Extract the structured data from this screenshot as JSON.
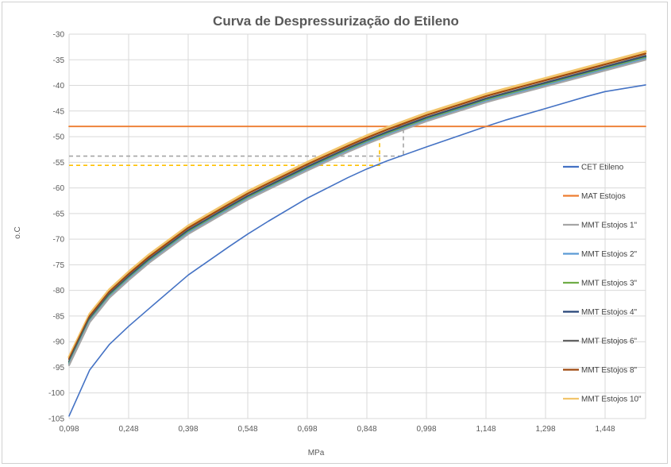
{
  "chart_data": {
    "type": "line",
    "title": "Curva de Despressurização do Etileno",
    "xlabel": "MPa",
    "ylabel": "o.C",
    "xlim": [
      0.098,
      1.55
    ],
    "ylim": [
      -105,
      -30
    ],
    "xticks": [
      0.098,
      0.248,
      0.398,
      0.548,
      0.698,
      0.848,
      0.998,
      1.148,
      1.298,
      1.448
    ],
    "xtick_labels": [
      "0,098",
      "0,248",
      "0,398",
      "0,548",
      "0,698",
      "0,848",
      "0,998",
      "1,148",
      "1,298",
      "1,448"
    ],
    "yticks": [
      -30,
      -35,
      -40,
      -45,
      -50,
      -55,
      -60,
      -65,
      -70,
      -75,
      -80,
      -85,
      -90,
      -95,
      -100,
      -105
    ],
    "grid": true,
    "legend_position": "right",
    "series": [
      {
        "name": "CET Etileno",
        "color": "#4472C4",
        "width": 1.6,
        "x": [
          0.098,
          0.15,
          0.2,
          0.248,
          0.3,
          0.398,
          0.5,
          0.548,
          0.6,
          0.698,
          0.8,
          0.848,
          0.9,
          0.998,
          1.1,
          1.148,
          1.2,
          1.298,
          1.4,
          1.448,
          1.55
        ],
        "y": [
          -104.5,
          -95.5,
          -90.5,
          -87,
          -83.5,
          -77,
          -71.5,
          -69,
          -66.5,
          -62,
          -58,
          -56.3,
          -54.7,
          -52,
          -49.3,
          -48,
          -46.7,
          -44.5,
          -42.2,
          -41.2,
          -39.9
        ]
      },
      {
        "name": "MAT Estojos",
        "color": "#ED7D31",
        "width": 1.8,
        "x": [
          0.098,
          1.55
        ],
        "y": [
          -48,
          -48
        ]
      },
      {
        "name": "MMT Estojos 1\"",
        "color": "#A5A5A5",
        "width": 2.2,
        "x": [
          0.098,
          0.15,
          0.2,
          0.248,
          0.3,
          0.398,
          0.5,
          0.548,
          0.6,
          0.698,
          0.8,
          0.848,
          0.9,
          0.998,
          1.1,
          1.148,
          1.2,
          1.298,
          1.4,
          1.448,
          1.55
        ],
        "y": [
          -94.6,
          -86.2,
          -81.4,
          -78,
          -74.6,
          -69,
          -64.4,
          -62.3,
          -60.3,
          -56.6,
          -53,
          -51.4,
          -49.8,
          -47,
          -44.5,
          -43.3,
          -42.2,
          -40.2,
          -38.1,
          -37.1,
          -35
        ]
      },
      {
        "name": "MMT Estojos 2\"",
        "color": "#5B9BD5",
        "width": 2.2,
        "x": [
          0.098,
          0.15,
          0.2,
          0.248,
          0.3,
          0.398,
          0.5,
          0.548,
          0.6,
          0.698,
          0.8,
          0.848,
          0.9,
          0.998,
          1.1,
          1.148,
          1.2,
          1.298,
          1.4,
          1.448,
          1.55
        ],
        "y": [
          -94.4,
          -86,
          -81.2,
          -77.8,
          -74.4,
          -68.8,
          -64.2,
          -62.1,
          -60.1,
          -56.4,
          -52.8,
          -51.2,
          -49.6,
          -46.8,
          -44.3,
          -43.1,
          -42,
          -40,
          -37.9,
          -36.9,
          -34.8
        ]
      },
      {
        "name": "MMT Estojos 3\"",
        "color": "#70AD47",
        "width": 2.2,
        "x": [
          0.098,
          0.15,
          0.2,
          0.248,
          0.3,
          0.398,
          0.5,
          0.548,
          0.6,
          0.698,
          0.8,
          0.848,
          0.9,
          0.998,
          1.1,
          1.148,
          1.2,
          1.298,
          1.4,
          1.448,
          1.55
        ],
        "y": [
          -94.2,
          -85.8,
          -81,
          -77.6,
          -74.2,
          -68.6,
          -64,
          -61.9,
          -59.9,
          -56.2,
          -52.6,
          -51,
          -49.4,
          -46.6,
          -44.1,
          -42.9,
          -41.8,
          -39.8,
          -37.7,
          -36.7,
          -34.6
        ]
      },
      {
        "name": "MMT Estojos 4\"",
        "color": "#264478",
        "width": 2.2,
        "x": [
          0.098,
          0.15,
          0.2,
          0.248,
          0.3,
          0.398,
          0.5,
          0.548,
          0.6,
          0.698,
          0.8,
          0.848,
          0.9,
          0.998,
          1.1,
          1.148,
          1.2,
          1.298,
          1.4,
          1.448,
          1.55
        ],
        "y": [
          -94,
          -85.6,
          -80.8,
          -77.4,
          -74,
          -68.4,
          -63.8,
          -61.7,
          -59.7,
          -56,
          -52.4,
          -50.8,
          -49.2,
          -46.4,
          -43.9,
          -42.7,
          -41.6,
          -39.6,
          -37.5,
          -36.5,
          -34.4
        ]
      },
      {
        "name": "MMT Estojos 6\"",
        "color": "#636363",
        "width": 2.2,
        "x": [
          0.098,
          0.15,
          0.2,
          0.248,
          0.3,
          0.398,
          0.5,
          0.548,
          0.6,
          0.698,
          0.8,
          0.848,
          0.9,
          0.998,
          1.1,
          1.148,
          1.2,
          1.298,
          1.4,
          1.448,
          1.55
        ],
        "y": [
          -93.8,
          -85.4,
          -80.6,
          -77.2,
          -73.8,
          -68.2,
          -63.6,
          -61.5,
          -59.5,
          -55.8,
          -52.2,
          -50.6,
          -49,
          -46.2,
          -43.7,
          -42.5,
          -41.4,
          -39.4,
          -37.3,
          -36.3,
          -34.2
        ]
      },
      {
        "name": "MMT Estojos 8\"",
        "color": "#9E480E",
        "width": 2.2,
        "x": [
          0.098,
          0.15,
          0.2,
          0.248,
          0.3,
          0.398,
          0.5,
          0.548,
          0.6,
          0.698,
          0.8,
          0.848,
          0.9,
          0.998,
          1.1,
          1.148,
          1.2,
          1.298,
          1.4,
          1.448,
          1.55
        ],
        "y": [
          -93.4,
          -85,
          -80.2,
          -76.8,
          -73.4,
          -67.8,
          -63.2,
          -61.1,
          -59.1,
          -55.4,
          -51.8,
          -50.2,
          -48.6,
          -45.8,
          -43.3,
          -42.1,
          -41,
          -39,
          -36.9,
          -35.9,
          -33.8
        ]
      },
      {
        "name": "MMT Estojos 10\"",
        "color": "#F2C56B",
        "width": 3.2,
        "x": [
          0.098,
          0.15,
          0.2,
          0.248,
          0.3,
          0.398,
          0.5,
          0.548,
          0.6,
          0.698,
          0.8,
          0.848,
          0.9,
          0.998,
          1.1,
          1.148,
          1.2,
          1.298,
          1.4,
          1.448,
          1.55
        ],
        "y": [
          -93,
          -84.6,
          -79.8,
          -76.4,
          -73,
          -67.4,
          -62.8,
          -60.7,
          -58.7,
          -55,
          -51.4,
          -49.8,
          -48.2,
          -45.4,
          -42.9,
          -41.7,
          -40.6,
          -38.6,
          -36.5,
          -35.5,
          -33.4
        ]
      }
    ],
    "guide_lines": [
      {
        "color": "#A5A5A5",
        "x": [
          0.098,
          0.94,
          0.94
        ],
        "y": [
          -53.8,
          -53.8,
          -48
        ]
      },
      {
        "color": "#FFC000",
        "x": [
          0.098,
          0.88,
          0.88
        ],
        "y": [
          -55.6,
          -55.6,
          -48
        ]
      }
    ]
  }
}
